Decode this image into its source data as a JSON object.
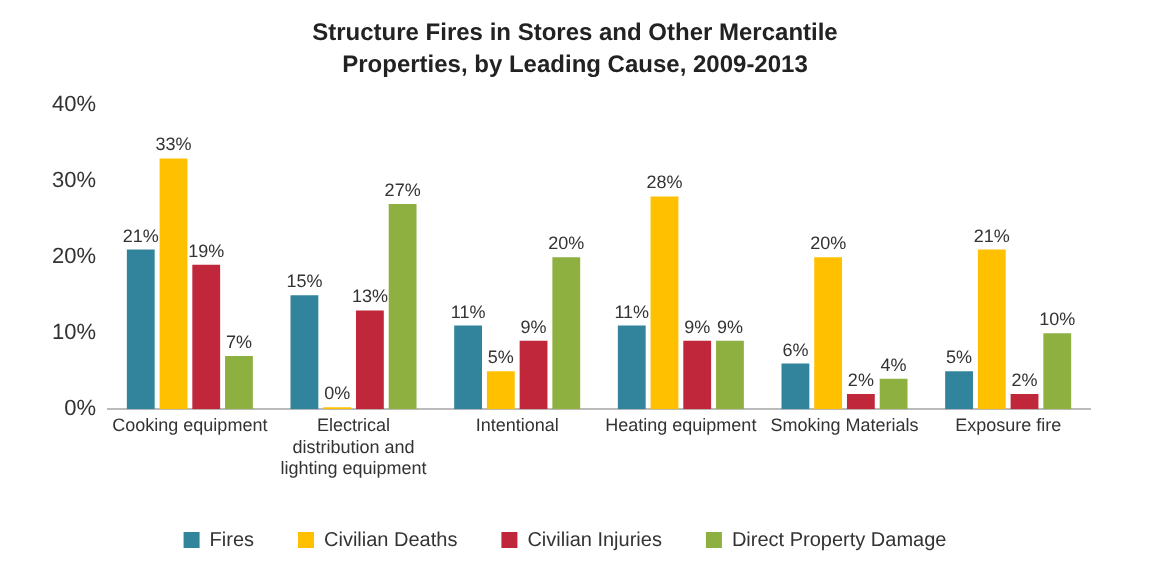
{
  "chart_data": {
    "type": "bar",
    "title": "Structure Fires in Stores and Other Mercantile Properties, by Leading Cause, 2009-2013",
    "categories": [
      "Cooking equipment",
      "Electrical distribution and lighting equipment",
      "Intentional",
      "Heating equipment",
      "Smoking Materials",
      "Exposure fire"
    ],
    "series": [
      {
        "name": "Fires",
        "color": "#31849b",
        "values": [
          21,
          15,
          11,
          11,
          6,
          5
        ],
        "value_labels": [
          "21%",
          "15%",
          "11%",
          "11%",
          "6%",
          "5%"
        ]
      },
      {
        "name": "Civilian Deaths",
        "color": "#ffc000",
        "values": [
          33,
          0,
          5,
          28,
          20,
          21
        ],
        "value_labels": [
          "33%",
          "0%",
          "5%",
          "28%",
          "20%",
          "21%"
        ]
      },
      {
        "name": "Civilian Injuries",
        "color": "#c0273b",
        "values": [
          19,
          13,
          9,
          9,
          2,
          2
        ],
        "value_labels": [
          "19%",
          "13%",
          "9%",
          "9%",
          "2%",
          "2%"
        ]
      },
      {
        "name": "Direct Property Damage",
        "color": "#8db040",
        "values": [
          7,
          27,
          20,
          9,
          4,
          10
        ],
        "value_labels": [
          "7%",
          "27%",
          "20%",
          "9%",
          "4%",
          "10%"
        ]
      }
    ],
    "ylim": [
      0,
      40
    ],
    "yticks": [
      {
        "value": 0,
        "label": "0%"
      },
      {
        "value": 10,
        "label": "10%"
      },
      {
        "value": 20,
        "label": "20%"
      },
      {
        "value": 30,
        "label": "30%"
      },
      {
        "value": 40,
        "label": "40%"
      }
    ],
    "grid": false,
    "legend": "bottom"
  }
}
